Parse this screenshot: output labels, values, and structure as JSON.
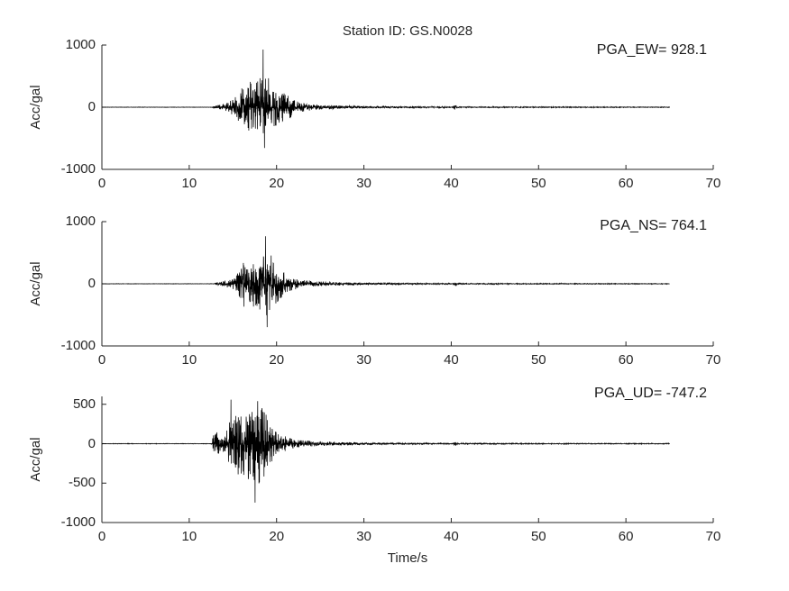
{
  "figure": {
    "title": "Station ID: GS.N0028",
    "xlabel": "Time/s",
    "ylabel": "Acc/gal",
    "background_color": "#ffffff",
    "axis_color": "#262626",
    "trace_color": "#000000"
  },
  "chart_data": [
    {
      "type": "line",
      "component": "EW",
      "annotation": "PGA_EW= 928.1",
      "pga": 928.1,
      "pga_time_s": 18.46,
      "ylabel": "Acc/gal",
      "xlim": [
        0,
        70
      ],
      "ylim": [
        -1000,
        1000
      ],
      "xticks": [
        0,
        10,
        20,
        30,
        40,
        50,
        60,
        70
      ],
      "yticks": [
        -1000,
        0,
        1000
      ],
      "grid": false,
      "signal": {
        "units": "gal",
        "sample_rate_hz": 50,
        "t_start_s": 0,
        "t_end_s": 65,
        "seed": 11,
        "envelope_points": [
          [
            0,
            3
          ],
          [
            12.5,
            3
          ],
          [
            12.9,
            20
          ],
          [
            13.5,
            45
          ],
          [
            14.2,
            60
          ],
          [
            15.0,
            130
          ],
          [
            15.6,
            220
          ],
          [
            16.1,
            330
          ],
          [
            16.5,
            280
          ],
          [
            17.0,
            430
          ],
          [
            17.4,
            350
          ],
          [
            17.9,
            460
          ],
          [
            18.2,
            520
          ],
          [
            18.5,
            900
          ],
          [
            18.8,
            560
          ],
          [
            19.2,
            430
          ],
          [
            19.7,
            330
          ],
          [
            20.2,
            300
          ],
          [
            20.7,
            230
          ],
          [
            21.2,
            250
          ],
          [
            21.7,
            150
          ],
          [
            22.4,
            95
          ],
          [
            23.2,
            65
          ],
          [
            24,
            50
          ],
          [
            25,
            40
          ],
          [
            26,
            34
          ],
          [
            28,
            26
          ],
          [
            30,
            20
          ],
          [
            33,
            16
          ],
          [
            36,
            13
          ],
          [
            40.2,
            11
          ],
          [
            40.45,
            60
          ],
          [
            40.7,
            10
          ],
          [
            45,
            9
          ],
          [
            50,
            8
          ],
          [
            55,
            7
          ],
          [
            60,
            6
          ],
          [
            65,
            6
          ]
        ],
        "forced_peaks": [
          {
            "t": 18.46,
            "v": 928.1
          },
          {
            "t": 18.62,
            "v": -655
          }
        ]
      }
    },
    {
      "type": "line",
      "component": "NS",
      "annotation": "PGA_NS= 764.1",
      "pga": 764.1,
      "pga_time_s": 18.74,
      "ylabel": "Acc/gal",
      "xlim": [
        0,
        70
      ],
      "ylim": [
        -1000,
        1000
      ],
      "xticks": [
        0,
        10,
        20,
        30,
        40,
        50,
        60,
        70
      ],
      "yticks": [
        -1000,
        0,
        1000
      ],
      "grid": false,
      "signal": {
        "units": "gal",
        "sample_rate_hz": 50,
        "t_start_s": 0,
        "t_end_s": 65,
        "seed": 22,
        "envelope_points": [
          [
            0,
            3
          ],
          [
            12.7,
            3
          ],
          [
            13.1,
            22
          ],
          [
            13.8,
            40
          ],
          [
            14.6,
            70
          ],
          [
            15.3,
            130
          ],
          [
            15.8,
            260
          ],
          [
            16.3,
            420
          ],
          [
            16.8,
            330
          ],
          [
            17.3,
            460
          ],
          [
            17.8,
            380
          ],
          [
            18.2,
            430
          ],
          [
            18.6,
            620
          ],
          [
            18.9,
            760
          ],
          [
            19.2,
            520
          ],
          [
            19.6,
            400
          ],
          [
            20.1,
            300
          ],
          [
            20.6,
            210
          ],
          [
            21.2,
            150
          ],
          [
            21.9,
            105
          ],
          [
            22.6,
            75
          ],
          [
            23.5,
            55
          ],
          [
            25,
            38
          ],
          [
            27,
            27
          ],
          [
            30,
            17
          ],
          [
            34,
            12
          ],
          [
            40.2,
            9
          ],
          [
            40.45,
            55
          ],
          [
            40.7,
            9
          ],
          [
            45,
            8
          ],
          [
            50,
            7
          ],
          [
            60,
            6
          ],
          [
            65,
            5
          ]
        ],
        "forced_peaks": [
          {
            "t": 18.74,
            "v": 764.1
          },
          {
            "t": 18.92,
            "v": -698
          }
        ]
      }
    },
    {
      "type": "line",
      "component": "UD",
      "annotation": "PGA_UD= -747.2",
      "pga": -747.2,
      "pga_time_s": 17.54,
      "ylabel": "Acc/gal",
      "xlim": [
        0,
        70
      ],
      "ylim": [
        -1000,
        600
      ],
      "xticks": [
        0,
        10,
        20,
        30,
        40,
        50,
        60,
        70
      ],
      "yticks": [
        -1000,
        -500,
        0,
        500
      ],
      "grid": false,
      "signal": {
        "units": "gal",
        "sample_rate_hz": 50,
        "t_start_s": 0,
        "t_end_s": 65,
        "seed": 33,
        "envelope_points": [
          [
            0,
            3
          ],
          [
            12.5,
            3
          ],
          [
            12.75,
            110
          ],
          [
            13.2,
            150
          ],
          [
            13.7,
            100
          ],
          [
            14.2,
            170
          ],
          [
            14.7,
            430
          ],
          [
            15.1,
            300
          ],
          [
            15.6,
            460
          ],
          [
            16.1,
            380
          ],
          [
            16.6,
            480
          ],
          [
            17.1,
            430
          ],
          [
            17.5,
            620
          ],
          [
            17.9,
            540
          ],
          [
            18.3,
            460
          ],
          [
            18.8,
            380
          ],
          [
            19.3,
            260
          ],
          [
            19.8,
            170
          ],
          [
            20.4,
            120
          ],
          [
            21.1,
            90
          ],
          [
            21.9,
            62
          ],
          [
            22.8,
            45
          ],
          [
            24,
            36
          ],
          [
            26,
            26
          ],
          [
            28,
            19
          ],
          [
            30,
            15
          ],
          [
            34,
            11
          ],
          [
            40.2,
            8
          ],
          [
            40.45,
            38
          ],
          [
            40.7,
            8
          ],
          [
            45,
            7
          ],
          [
            50,
            6
          ],
          [
            60,
            5
          ],
          [
            65,
            5
          ]
        ],
        "forced_peaks": [
          {
            "t": 17.54,
            "v": -747.2
          },
          {
            "t": 14.78,
            "v": 558
          },
          {
            "t": 17.84,
            "v": 540
          }
        ]
      }
    }
  ]
}
